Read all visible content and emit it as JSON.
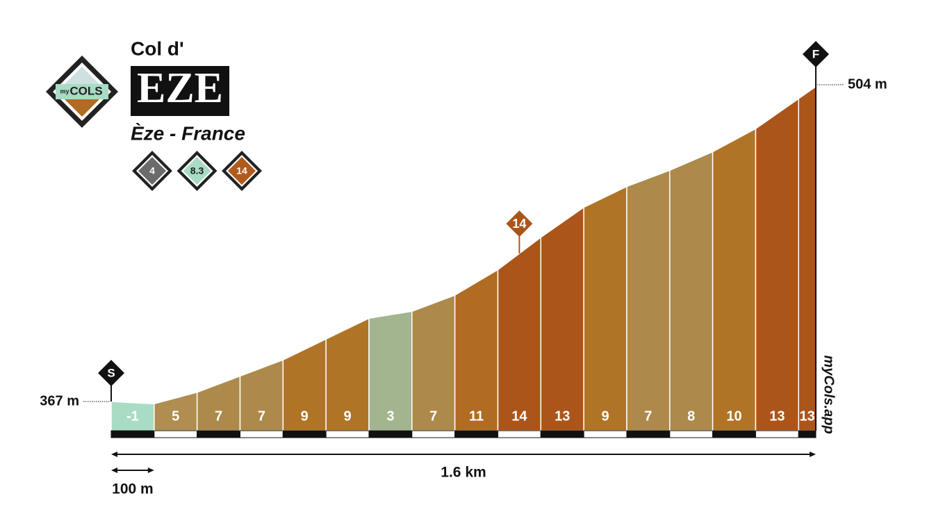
{
  "chart_data": {
    "type": "profile",
    "logo": [
      "my",
      "COLS"
    ],
    "title_prefix": "Col d'",
    "title": "EZE",
    "subtitle": "Èze - France",
    "stats": [
      4,
      8.3,
      14
    ],
    "stat_colors": [
      "#6b6b6b",
      "#a8dcc4",
      "#b05a1c"
    ],
    "gradients": [
      -1,
      5,
      7,
      7,
      9,
      9,
      3,
      7,
      11,
      14,
      13,
      9,
      7,
      8,
      10,
      13,
      13
    ],
    "colors": [
      "#a8dcc4",
      "#b08d50",
      "#ad8a4b",
      "#ad8a4b",
      "#b07427",
      "#b07427",
      "#a3b58e",
      "#ad8a4b",
      "#b06c22",
      "#ac551a",
      "#ac551a",
      "#b07427",
      "#ad8a4b",
      "#ad8a4b",
      "#b07427",
      "#ac551a",
      "#ac551a"
    ],
    "segment_length": {
      "value": 100,
      "label": "100 m"
    },
    "total_distance": {
      "value": 1640,
      "label": "1.6 km"
    },
    "start_elevation": {
      "value": 367,
      "label": "367 m"
    },
    "finish_elevation": {
      "value": 504,
      "label": "504 m"
    },
    "start_marker": "S",
    "finish_marker": "F",
    "watermark": "myCols.app"
  }
}
